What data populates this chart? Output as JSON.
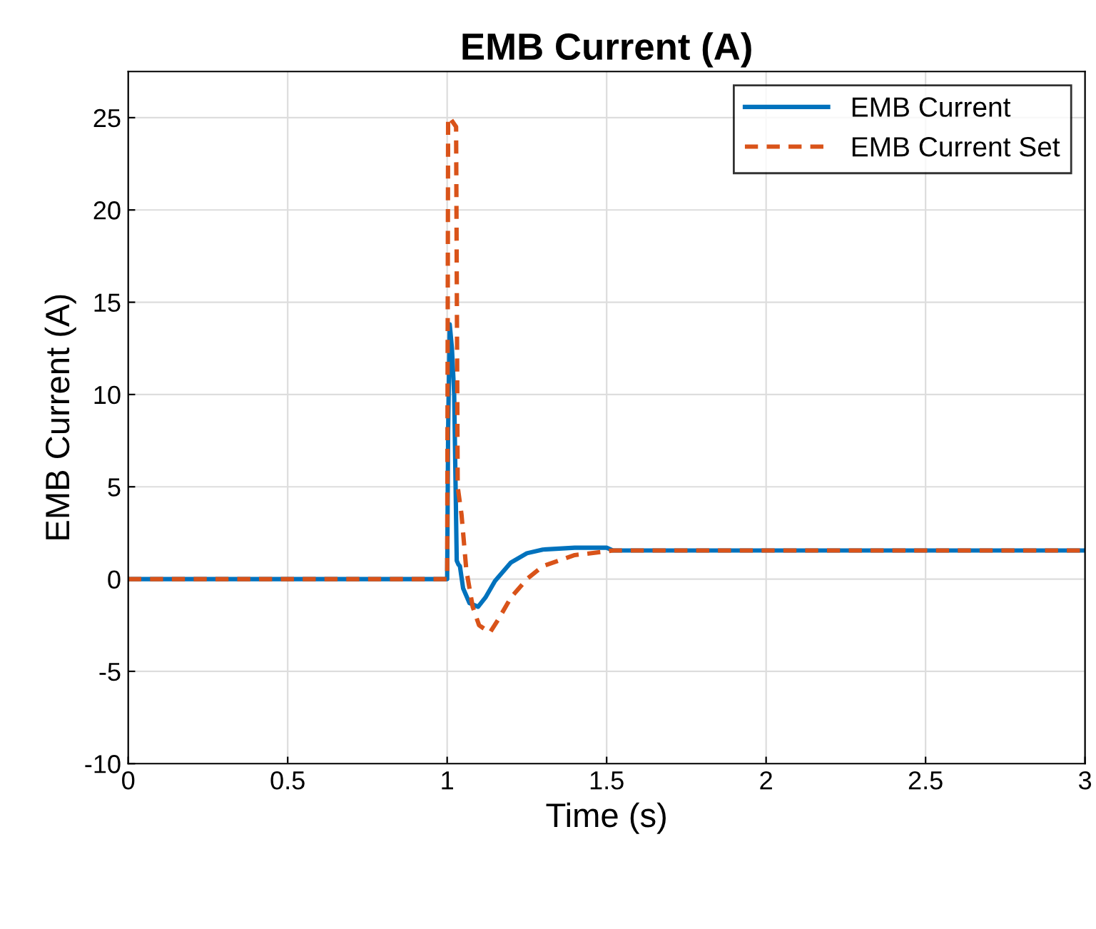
{
  "chart_data": {
    "type": "line",
    "title": "EMB Current (A)",
    "xlabel": "Time (s)",
    "ylabel": "EMB Current (A)",
    "xlim": [
      0,
      3
    ],
    "xticks": [
      0,
      0.5,
      1,
      1.5,
      2,
      2.5,
      3
    ],
    "ylim": [
      -10,
      27.5
    ],
    "yticks": [
      -10,
      -5,
      0,
      5,
      10,
      15,
      20,
      25
    ],
    "grid": true,
    "legend": "top right",
    "series": [
      {
        "name": "EMB Current",
        "color": "#0072bd",
        "line_style": "solid",
        "x": [
          0,
          1.0,
          1.003,
          1.008,
          1.015,
          1.022,
          1.03,
          1.035,
          1.04,
          1.05,
          1.07,
          1.097,
          1.12,
          1.15,
          1.2,
          1.25,
          1.3,
          1.4,
          1.5,
          1.52,
          2,
          3
        ],
        "values": [
          0,
          0,
          8,
          13.8,
          12.5,
          10,
          1.0,
          0.8,
          0.7,
          -0.5,
          -1.3,
          -1.5,
          -1.0,
          -0.1,
          0.9,
          1.4,
          1.6,
          1.7,
          1.7,
          1.55,
          1.55,
          1.55
        ]
      },
      {
        "name": "EMB Current Set",
        "color": "#d95319",
        "line_style": "dashed",
        "x": [
          0,
          1.0,
          1.003,
          1.008,
          1.028,
          1.033,
          1.045,
          1.06,
          1.08,
          1.1,
          1.134,
          1.16,
          1.2,
          1.25,
          1.3,
          1.4,
          1.5,
          1.52,
          2,
          3
        ],
        "values": [
          0,
          0,
          25,
          25,
          24.5,
          5,
          3.5,
          0.5,
          -1.5,
          -2.5,
          -2.9,
          -2.2,
          -1.0,
          0,
          0.7,
          1.3,
          1.5,
          1.55,
          1.55,
          1.55
        ]
      }
    ]
  }
}
